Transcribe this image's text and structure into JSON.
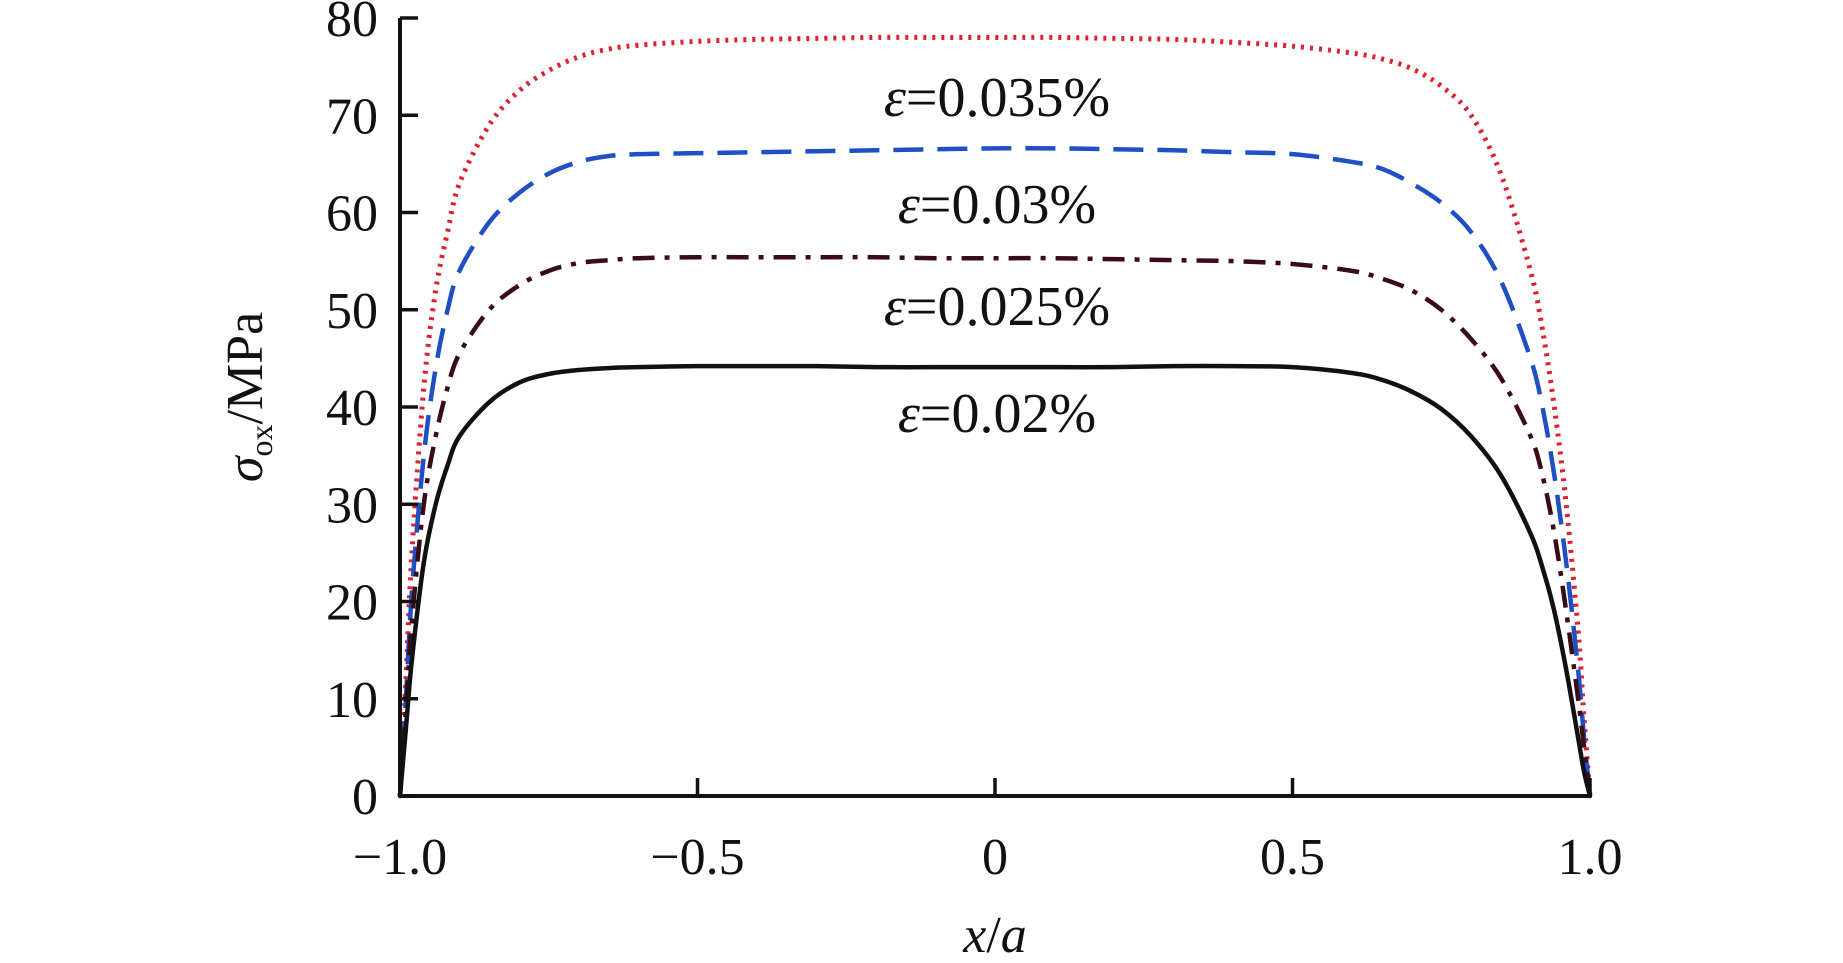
{
  "chart_data": {
    "type": "line",
    "title": "",
    "xlabel": {
      "var": "x",
      "slash": "/",
      "den": "a"
    },
    "ylabel": {
      "sym": "σ",
      "sub": "ox",
      "unit": "/MPa"
    },
    "xlim": [
      -1.0,
      1.0
    ],
    "ylim": [
      0,
      80
    ],
    "xticks": [
      -1.0,
      -0.5,
      0,
      0.5,
      1.0
    ],
    "xtick_labels": [
      "−1.0",
      "−0.5",
      "0",
      "0.5",
      "1.0"
    ],
    "yticks": [
      0,
      10,
      20,
      30,
      40,
      50,
      60,
      70,
      80
    ],
    "ytick_labels": [
      "0",
      "10",
      "20",
      "30",
      "40",
      "50",
      "60",
      "70",
      "80"
    ],
    "grid": false,
    "legend": "none (inline labels)",
    "x": [
      -1.0,
      -0.99,
      -0.98,
      -0.96,
      -0.94,
      -0.92,
      -0.9,
      -0.85,
      -0.8,
      -0.75,
      -0.7,
      -0.65,
      -0.6,
      -0.5,
      -0.4,
      -0.3,
      -0.2,
      -0.1,
      0,
      0.1,
      0.2,
      0.3,
      0.4,
      0.5,
      0.6,
      0.65,
      0.7,
      0.75,
      0.8,
      0.85,
      0.9,
      0.92,
      0.94,
      0.96,
      0.98,
      0.99,
      1.0
    ],
    "series": [
      {
        "label_parts": [
          "ε",
          "=0.035%"
        ],
        "color": "#e0202a",
        "dash": "dotted",
        "values": [
          0,
          12,
          25,
          42,
          52,
          58,
          63,
          69,
          72.5,
          74.6,
          76,
          76.8,
          77.2,
          77.6,
          77.8,
          77.9,
          78,
          78,
          78,
          78,
          77.9,
          77.8,
          77.5,
          77.1,
          76.4,
          75.8,
          74.8,
          73,
          70,
          64,
          54,
          48,
          40,
          30,
          17,
          8,
          0
        ]
      },
      {
        "label_parts": [
          "ε",
          "=0.03%"
        ],
        "color": "#1f4fc4",
        "dash": "dashed",
        "values": [
          0,
          10,
          21,
          35,
          44,
          50,
          54,
          59,
          62,
          64,
          65.2,
          65.8,
          66,
          66.1,
          66.2,
          66.3,
          66.4,
          66.5,
          66.6,
          66.6,
          66.5,
          66.4,
          66.2,
          66,
          65.2,
          64.5,
          63,
          61,
          58,
          53,
          45,
          40,
          33,
          24,
          13,
          6,
          0
        ]
      },
      {
        "label_parts": [
          "ε",
          "=0.025%"
        ],
        "color": "#3a0c14",
        "dash": "dashdot",
        "values": [
          0,
          9,
          18,
          30,
          37,
          42,
          45.5,
          50,
          52.5,
          54,
          54.8,
          55.1,
          55.3,
          55.4,
          55.4,
          55.4,
          55.4,
          55.3,
          55.3,
          55.3,
          55.2,
          55.1,
          55,
          54.7,
          54,
          53.2,
          52,
          50,
          47,
          43,
          37,
          33,
          27,
          19,
          10,
          5,
          0
        ]
      },
      {
        "label_parts": [
          "ε",
          "=0.02%"
        ],
        "color": "#111111",
        "dash": "solid",
        "values": [
          0,
          7,
          14,
          24,
          30,
          34,
          37,
          40.5,
          42.5,
          43.4,
          43.8,
          44,
          44.1,
          44.2,
          44.2,
          44.2,
          44.1,
          44.1,
          44.1,
          44.1,
          44.1,
          44.2,
          44.2,
          44.1,
          43.5,
          42.8,
          41.6,
          39.8,
          37,
          33,
          27,
          23.5,
          19,
          13,
          6,
          2.5,
          0
        ]
      }
    ],
    "annotations": [
      {
        "parts": [
          "ε",
          "=0.035%"
        ],
        "x": 0.0,
        "y": 72
      },
      {
        "parts": [
          "ε",
          "=0.03%"
        ],
        "x": 0.0,
        "y": 61
      },
      {
        "parts": [
          "ε",
          "=0.025%"
        ],
        "x": 0.0,
        "y": 50.5
      },
      {
        "parts": [
          "ε",
          "=0.02%"
        ],
        "x": 0.0,
        "y": 39.5
      }
    ]
  }
}
